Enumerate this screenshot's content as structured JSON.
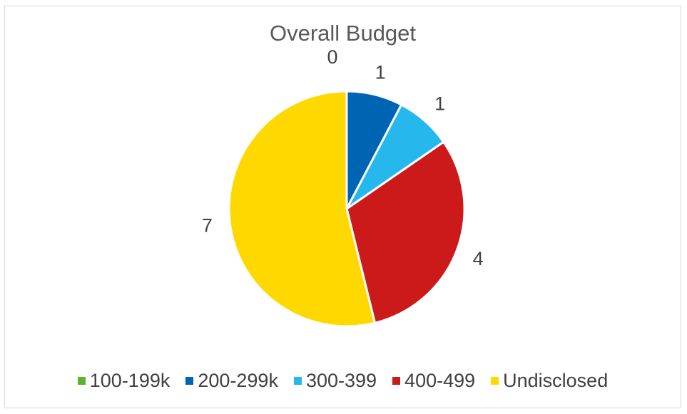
{
  "chart_data": {
    "type": "pie",
    "title": "Overall Budget",
    "categories": [
      "100-199k",
      "200-299k",
      "300-399",
      "400-499",
      "Undisclosed"
    ],
    "values": [
      0,
      1,
      1,
      4,
      7
    ],
    "colors": [
      "#5cb32e",
      "#0064b4",
      "#26b8ec",
      "#cc1a1a",
      "#ffd800"
    ],
    "data_labels": true,
    "legend": "bottom"
  }
}
